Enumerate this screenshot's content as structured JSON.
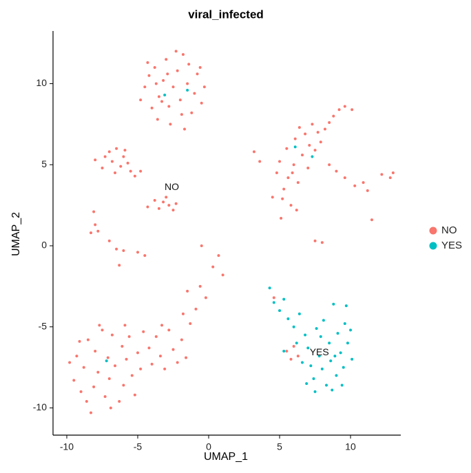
{
  "chart_data": {
    "type": "scatter",
    "title": "viral_infected",
    "xlabel": "UMAP_1",
    "ylabel": "UMAP_2",
    "xlim": [
      -10.97,
      13.54
    ],
    "ylim": [
      -11.68,
      13.25
    ],
    "xticks": [
      -10,
      -5,
      0,
      5,
      10
    ],
    "yticks": [
      -10,
      -5,
      0,
      5,
      10
    ],
    "grid": false,
    "legend": "right",
    "annotations": [
      "NO",
      "YES"
    ],
    "series": [
      {
        "name": "NO",
        "color": "#F8766D",
        "x": [
          -4.5,
          -4.2,
          -3.8,
          -3.5,
          -3.2,
          -3,
          -2.8,
          -2.5,
          -2.2,
          -2,
          -1.8,
          -1.5,
          -1.2,
          -1,
          -0.8,
          -0.5,
          -0.3,
          -4,
          -3.6,
          -3.3,
          -2.7,
          -2.3,
          -1.7,
          -4.8,
          -4.3,
          -1.4,
          -0.6,
          -2.9,
          -1.9,
          -3.7,
          -8,
          -7.5,
          -7,
          -6.8,
          -6.5,
          -6.2,
          -6,
          -5.7,
          -5.5,
          -5.2,
          -4.8,
          -6.6,
          -7.3,
          -5.9,
          -4.3,
          -3.8,
          -3.5,
          -3.2,
          -2.8,
          -2.5,
          -2.3,
          -3,
          -8.3,
          -8,
          -7.8,
          -8.1,
          -6.5,
          -6,
          -5,
          -4.5,
          -6.3,
          -7,
          -9.8,
          -9.5,
          -9.3,
          -9,
          -8.8,
          -8.5,
          -8.3,
          -8.1,
          -8,
          -7.8,
          -7.5,
          -7.3,
          -7.1,
          -7,
          -6.8,
          -6.6,
          -6.3,
          -6.1,
          -6,
          -5.8,
          -5.6,
          -5.4,
          -5.2,
          -5,
          -4.8,
          -8.6,
          -9.1,
          -7.7,
          -6.9,
          -5.9,
          -4.6,
          -4.2,
          -4,
          -3.7,
          -3.4,
          -3.1,
          -2.8,
          -2.5,
          -2.2,
          -1.9,
          -1.6,
          -3.3,
          -1.8,
          -1.3,
          -0.9,
          -1.5,
          -0.6,
          -0.2,
          0.3,
          0.7,
          1,
          -0.5,
          4.5,
          4.8,
          5,
          5.1,
          5.3,
          5.5,
          5.6,
          5.8,
          6,
          6.1,
          6.3,
          6.4,
          6.6,
          6.8,
          7,
          7.1,
          7.3,
          7.5,
          7.7,
          6.2,
          5.2,
          3.2,
          3.6,
          7.9,
          5.9,
          8.2,
          8.5,
          8.8,
          9.2,
          9.6,
          10.1,
          8.5,
          9,
          9.6,
          10.3,
          10.9,
          11.2,
          11.5,
          12.2,
          12.8,
          13,
          7.5,
          8,
          5.5,
          5.8,
          6,
          4.6,
          6.3
        ],
        "y": [
          9.8,
          10.5,
          11,
          9.2,
          10.2,
          11.5,
          8.6,
          9.8,
          10.8,
          9,
          11.8,
          10,
          8.2,
          9.4,
          10.6,
          8.8,
          9.8,
          8.5,
          7.8,
          8.9,
          7.5,
          12,
          7.2,
          9,
          11.3,
          11.2,
          11,
          10.6,
          8.1,
          10,
          5.3,
          4.8,
          5.8,
          5.2,
          6,
          4.9,
          5.5,
          5.1,
          4.6,
          4.3,
          4.6,
          4.5,
          5.5,
          5.9,
          2.4,
          2.8,
          2.3,
          2.7,
          2.5,
          2.2,
          2.6,
          3,
          0.8,
          1.3,
          0.9,
          2.1,
          -0.2,
          -0.3,
          -0.4,
          -0.6,
          -1.2,
          0.3,
          -7.2,
          -8.3,
          -6.8,
          -9,
          -7.5,
          -5.8,
          -10.3,
          -8.7,
          -6.5,
          -7.8,
          -5.2,
          -9.3,
          -6.9,
          -8.2,
          -5.5,
          -7.4,
          -9.6,
          -6.2,
          -8.6,
          -7,
          -5.6,
          -8,
          -9.2,
          -6.6,
          -7.6,
          -9.6,
          -5.9,
          -4.9,
          -10,
          -4.9,
          -5.3,
          -6.3,
          -7.3,
          -5.6,
          -6.8,
          -7.6,
          -5.2,
          -6.4,
          -7.2,
          -5.8,
          -6.9,
          -4.9,
          -4.2,
          -4.8,
          -3.9,
          -2.8,
          -2.5,
          -3.2,
          -1.3,
          -0.6,
          -1.8,
          0,
          3,
          4.5,
          5.2,
          1.7,
          3.5,
          6,
          4.2,
          2.5,
          5,
          6.6,
          3.9,
          7.3,
          5.6,
          6.9,
          4.8,
          6.2,
          7.5,
          5.9,
          7,
          2.2,
          2.9,
          5.8,
          5.2,
          6.4,
          4.5,
          7.2,
          7.6,
          8,
          8.4,
          8.6,
          8.4,
          5,
          4.6,
          4.2,
          3.7,
          3.9,
          3.4,
          1.6,
          4.4,
          4.2,
          4.5,
          0.3,
          0.2,
          -6.5,
          -7,
          -6.2,
          -3.2,
          -6.8
        ]
      },
      {
        "name": "YES",
        "color": "#00BFC4",
        "x": [
          4.3,
          4.6,
          5,
          5.3,
          5.6,
          6,
          6.4,
          6.8,
          7,
          7.2,
          7.4,
          7.6,
          7.8,
          8,
          8.1,
          8.3,
          8.5,
          8.6,
          8.8,
          9,
          9.1,
          9.3,
          9.5,
          9.6,
          9.8,
          10,
          10.1,
          9.7,
          6.6,
          6.9,
          7.5,
          8.7,
          5.3,
          6.2,
          7.9,
          8.9,
          9.4,
          6.1,
          -3.1,
          -7.2,
          7.3,
          -1.5
        ],
        "y": [
          -2.6,
          -3.5,
          -4,
          -3.3,
          -4.5,
          -5,
          -4.2,
          -5.5,
          -6.3,
          -7.4,
          -8.2,
          -5.1,
          -6.8,
          -7.6,
          -4.6,
          -8.6,
          -6,
          -7.1,
          -3.6,
          -8,
          -5.4,
          -6.6,
          -7.5,
          -4.8,
          -6,
          -5.2,
          -7,
          -3.7,
          -7.2,
          -8.5,
          -9,
          -8.9,
          -6.5,
          -6,
          -5.6,
          -6.8,
          -8.6,
          6.1,
          9.3,
          -7.1,
          5.5,
          9.6
        ]
      }
    ]
  }
}
